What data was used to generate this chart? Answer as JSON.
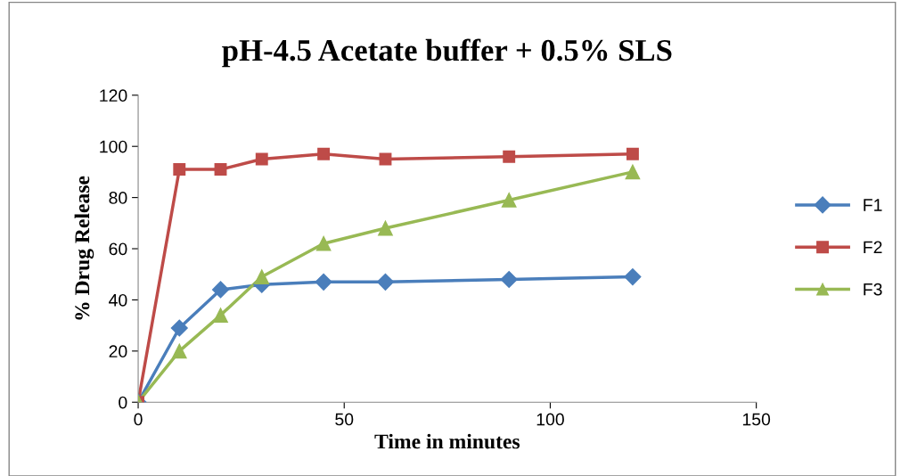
{
  "chart_data": {
    "type": "line",
    "title": "pH-4.5 Acetate buffer + 0.5% SLS",
    "xlabel": "Time in minutes",
    "ylabel": "% Drug Release",
    "xlim": [
      0,
      150
    ],
    "xticks": [
      0,
      50,
      100,
      150
    ],
    "ylim": [
      0,
      120
    ],
    "yticks": [
      0,
      20,
      40,
      60,
      80,
      100,
      120
    ],
    "grid": false,
    "legend": "right",
    "series": [
      {
        "name": "F1",
        "color": "#4a7ebb",
        "marker": "diamond",
        "x": [
          0,
          10,
          20,
          30,
          45,
          60,
          90,
          120
        ],
        "values": [
          0,
          29,
          44,
          46,
          47,
          47,
          48,
          49
        ]
      },
      {
        "name": "F2",
        "color": "#be4b48",
        "marker": "square",
        "x": [
          0,
          10,
          20,
          30,
          45,
          60,
          90,
          120
        ],
        "values": [
          0,
          91,
          91,
          95,
          97,
          95,
          96,
          97
        ]
      },
      {
        "name": "F3",
        "color": "#98b954",
        "marker": "triangle",
        "x": [
          0,
          10,
          20,
          30,
          45,
          60,
          90,
          120
        ],
        "values": [
          0,
          20,
          34,
          49,
          62,
          68,
          79,
          90
        ]
      }
    ]
  }
}
